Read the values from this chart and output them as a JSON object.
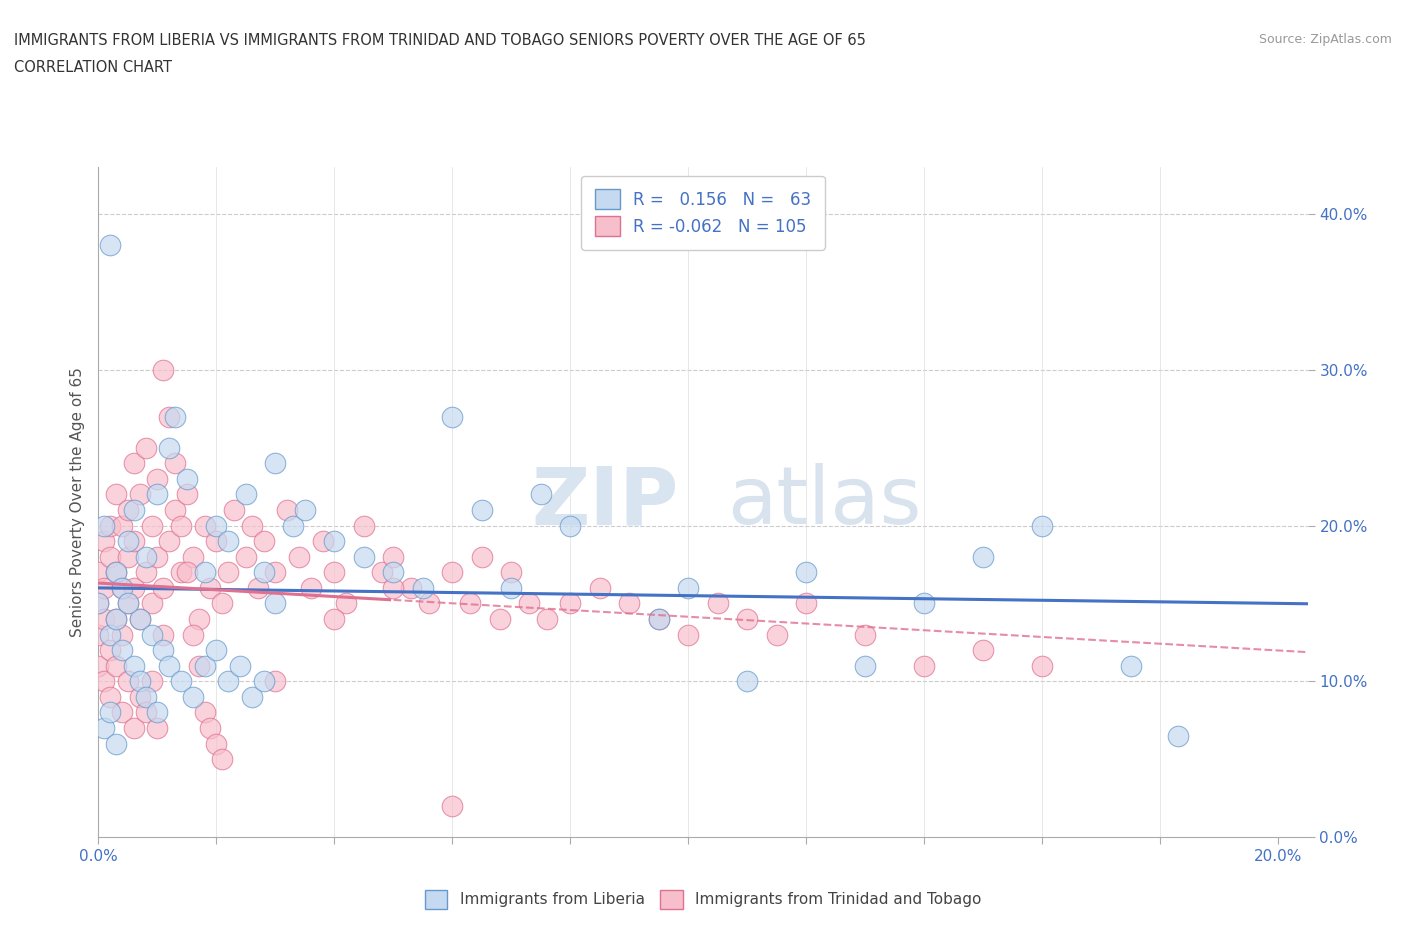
{
  "title_line1": "IMMIGRANTS FROM LIBERIA VS IMMIGRANTS FROM TRINIDAD AND TOBAGO SENIORS POVERTY OVER THE AGE OF 65",
  "title_line2": "CORRELATION CHART",
  "source_text": "Source: ZipAtlas.com",
  "ylabel": "Seniors Poverty Over the Age of 65",
  "xlim": [
    0.0,
    0.205
  ],
  "ylim": [
    0.0,
    0.43
  ],
  "liberia_R": 0.156,
  "liberia_N": 63,
  "tt_R": -0.062,
  "tt_N": 105,
  "color_liberia_fill": "#c5d9f0",
  "color_liberia_edge": "#6699cc",
  "color_tt_fill": "#f7bfcc",
  "color_tt_edge": "#e07090",
  "color_liberia_line": "#4472c4",
  "color_tt_line": "#e07090",
  "watermark_ZIP": "ZIP",
  "watermark_atlas": "atlas",
  "liberia_x": [
    0.002,
    0.013,
    0.0,
    0.003,
    0.005,
    0.007,
    0.001,
    0.004,
    0.006,
    0.008,
    0.01,
    0.012,
    0.015,
    0.018,
    0.02,
    0.022,
    0.025,
    0.028,
    0.03,
    0.033,
    0.035,
    0.04,
    0.045,
    0.05,
    0.055,
    0.06,
    0.065,
    0.07,
    0.075,
    0.08,
    0.002,
    0.003,
    0.004,
    0.005,
    0.006,
    0.007,
    0.008,
    0.009,
    0.01,
    0.011,
    0.012,
    0.014,
    0.016,
    0.018,
    0.02,
    0.022,
    0.024,
    0.026,
    0.028,
    0.03,
    0.095,
    0.1,
    0.11,
    0.12,
    0.13,
    0.14,
    0.15,
    0.16,
    0.175,
    0.183,
    0.001,
    0.002,
    0.003
  ],
  "liberia_y": [
    0.38,
    0.27,
    0.15,
    0.17,
    0.19,
    0.14,
    0.2,
    0.16,
    0.21,
    0.18,
    0.22,
    0.25,
    0.23,
    0.17,
    0.2,
    0.19,
    0.22,
    0.17,
    0.24,
    0.2,
    0.21,
    0.19,
    0.18,
    0.17,
    0.16,
    0.27,
    0.21,
    0.16,
    0.22,
    0.2,
    0.13,
    0.14,
    0.12,
    0.15,
    0.11,
    0.1,
    0.09,
    0.13,
    0.08,
    0.12,
    0.11,
    0.1,
    0.09,
    0.11,
    0.12,
    0.1,
    0.11,
    0.09,
    0.1,
    0.15,
    0.14,
    0.16,
    0.1,
    0.17,
    0.11,
    0.15,
    0.18,
    0.2,
    0.11,
    0.065,
    0.07,
    0.08,
    0.06
  ],
  "tt_x": [
    0.0,
    0.0,
    0.0,
    0.0,
    0.001,
    0.001,
    0.001,
    0.002,
    0.002,
    0.002,
    0.003,
    0.003,
    0.003,
    0.004,
    0.004,
    0.004,
    0.005,
    0.005,
    0.005,
    0.006,
    0.006,
    0.006,
    0.007,
    0.007,
    0.008,
    0.008,
    0.009,
    0.009,
    0.01,
    0.01,
    0.011,
    0.011,
    0.012,
    0.013,
    0.014,
    0.015,
    0.016,
    0.017,
    0.018,
    0.019,
    0.02,
    0.021,
    0.022,
    0.023,
    0.025,
    0.026,
    0.027,
    0.028,
    0.03,
    0.032,
    0.034,
    0.036,
    0.038,
    0.04,
    0.042,
    0.045,
    0.048,
    0.05,
    0.053,
    0.056,
    0.06,
    0.063,
    0.065,
    0.068,
    0.07,
    0.073,
    0.076,
    0.08,
    0.085,
    0.09,
    0.095,
    0.1,
    0.105,
    0.11,
    0.115,
    0.12,
    0.13,
    0.14,
    0.15,
    0.16,
    0.001,
    0.002,
    0.003,
    0.004,
    0.005,
    0.006,
    0.007,
    0.008,
    0.009,
    0.01,
    0.011,
    0.012,
    0.013,
    0.014,
    0.015,
    0.016,
    0.017,
    0.018,
    0.019,
    0.02,
    0.021,
    0.03,
    0.04,
    0.05,
    0.06
  ],
  "tt_y": [
    0.17,
    0.15,
    0.13,
    0.11,
    0.19,
    0.16,
    0.14,
    0.2,
    0.18,
    0.12,
    0.22,
    0.17,
    0.14,
    0.2,
    0.16,
    0.13,
    0.18,
    0.21,
    0.15,
    0.24,
    0.19,
    0.16,
    0.22,
    0.14,
    0.25,
    0.17,
    0.2,
    0.15,
    0.23,
    0.18,
    0.16,
    0.13,
    0.19,
    0.21,
    0.17,
    0.22,
    0.18,
    0.14,
    0.2,
    0.16,
    0.19,
    0.15,
    0.17,
    0.21,
    0.18,
    0.2,
    0.16,
    0.19,
    0.17,
    0.21,
    0.18,
    0.16,
    0.19,
    0.17,
    0.15,
    0.2,
    0.17,
    0.18,
    0.16,
    0.15,
    0.17,
    0.15,
    0.18,
    0.14,
    0.17,
    0.15,
    0.14,
    0.15,
    0.16,
    0.15,
    0.14,
    0.13,
    0.15,
    0.14,
    0.13,
    0.15,
    0.13,
    0.11,
    0.12,
    0.11,
    0.1,
    0.09,
    0.11,
    0.08,
    0.1,
    0.07,
    0.09,
    0.08,
    0.1,
    0.07,
    0.3,
    0.27,
    0.24,
    0.2,
    0.17,
    0.13,
    0.11,
    0.08,
    0.07,
    0.06,
    0.05,
    0.1,
    0.14,
    0.16,
    0.02
  ]
}
